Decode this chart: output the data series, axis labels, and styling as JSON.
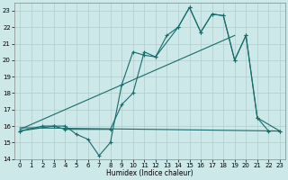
{
  "bg_color": "#cce8e8",
  "grid_color": "#b0cccc",
  "line_color": "#1a6b6b",
  "xlabel": "Humidex (Indice chaleur)",
  "xlim": [
    -0.5,
    23.5
  ],
  "ylim": [
    14,
    23.5
  ],
  "yticks": [
    14,
    15,
    16,
    17,
    18,
    19,
    20,
    21,
    22,
    23
  ],
  "xticks": [
    0,
    1,
    2,
    3,
    4,
    5,
    6,
    7,
    8,
    9,
    10,
    11,
    12,
    13,
    14,
    15,
    16,
    17,
    18,
    19,
    20,
    21,
    22,
    23
  ],
  "line1_x": [
    0,
    2,
    3,
    4,
    5,
    6,
    7,
    8,
    9,
    10,
    11,
    12,
    13,
    14,
    15,
    16,
    17,
    18,
    19,
    20,
    21,
    22,
    23
  ],
  "line1_y": [
    15.7,
    16.0,
    16.0,
    16.0,
    15.5,
    15.2,
    14.2,
    15.0,
    18.5,
    20.5,
    20.3,
    20.2,
    21.5,
    22.0,
    23.2,
    21.7,
    22.8,
    22.7,
    20.0,
    21.5,
    16.5,
    15.7,
    15.7
  ],
  "line2_x": [
    0,
    3,
    4,
    8,
    9,
    10,
    11,
    12,
    14,
    15,
    16,
    17,
    18,
    19,
    20,
    21,
    23
  ],
  "line2_y": [
    15.7,
    16.0,
    15.8,
    15.8,
    17.3,
    18.0,
    20.5,
    20.2,
    22.0,
    23.2,
    21.7,
    22.8,
    22.7,
    20.0,
    21.5,
    16.5,
    15.7
  ],
  "line3_x": [
    0,
    23
  ],
  "line3_y": [
    15.9,
    15.7
  ],
  "line4_x": [
    0,
    19
  ],
  "line4_y": [
    15.8,
    21.5
  ]
}
